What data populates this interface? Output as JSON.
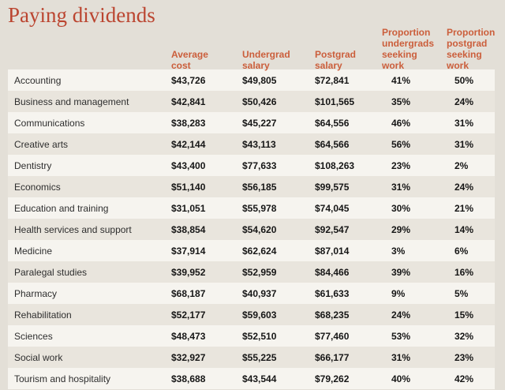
{
  "colors": {
    "background": "#e3dfd7",
    "row_light": "#f6f4ef",
    "row_dark": "#e9e5dd",
    "title_accent": "#bb4530",
    "header_accent": "#cb5e3b",
    "value_text": "#161616"
  },
  "chart_data": {
    "type": "table",
    "title": "Paying dividends",
    "columns": [
      {
        "key": "cost",
        "label": "Average\ncost"
      },
      {
        "key": "undergrad_salary",
        "label": "Undergrad\nsalary"
      },
      {
        "key": "postgrad_salary",
        "label": "Postgrad\nsalary"
      },
      {
        "key": "prop_undergrad_seeking",
        "label": "Proportion\nundergrads\nseeking\nwork"
      },
      {
        "key": "prop_postgrad_seeking",
        "label": "Proportion\npostgrad\nseeking\nwork"
      }
    ],
    "rows": [
      {
        "field": "Accounting",
        "cost": "$43,726",
        "undergrad_salary": "$49,805",
        "postgrad_salary": "$72,841",
        "prop_undergrad_seeking": "41%",
        "prop_postgrad_seeking": "50%"
      },
      {
        "field": "Business and management",
        "cost": "$42,841",
        "undergrad_salary": "$50,426",
        "postgrad_salary": "$101,565",
        "prop_undergrad_seeking": "35%",
        "prop_postgrad_seeking": "24%"
      },
      {
        "field": "Communications",
        "cost": "$38,283",
        "undergrad_salary": "$45,227",
        "postgrad_salary": "$64,556",
        "prop_undergrad_seeking": "46%",
        "prop_postgrad_seeking": "31%"
      },
      {
        "field": "Creative arts",
        "cost": "$42,144",
        "undergrad_salary": "$43,113",
        "postgrad_salary": "$64,566",
        "prop_undergrad_seeking": "56%",
        "prop_postgrad_seeking": "31%"
      },
      {
        "field": "Dentistry",
        "cost": "$43,400",
        "undergrad_salary": "$77,633",
        "postgrad_salary": "$108,263",
        "prop_undergrad_seeking": "23%",
        "prop_postgrad_seeking": "2%"
      },
      {
        "field": "Economics",
        "cost": "$51,140",
        "undergrad_salary": "$56,185",
        "postgrad_salary": "$99,575",
        "prop_undergrad_seeking": "31%",
        "prop_postgrad_seeking": "24%"
      },
      {
        "field": "Education and training",
        "cost": "$31,051",
        "undergrad_salary": "$55,978",
        "postgrad_salary": "$74,045",
        "prop_undergrad_seeking": "30%",
        "prop_postgrad_seeking": "21%"
      },
      {
        "field": "Health services and support",
        "cost": "$38,854",
        "undergrad_salary": "$54,620",
        "postgrad_salary": "$92,547",
        "prop_undergrad_seeking": "29%",
        "prop_postgrad_seeking": "14%"
      },
      {
        "field": "Medicine",
        "cost": "$37,914",
        "undergrad_salary": "$62,624",
        "postgrad_salary": "$87,014",
        "prop_undergrad_seeking": "3%",
        "prop_postgrad_seeking": "6%"
      },
      {
        "field": "Paralegal studies",
        "cost": "$39,952",
        "undergrad_salary": "$52,959",
        "postgrad_salary": "$84,466",
        "prop_undergrad_seeking": "39%",
        "prop_postgrad_seeking": "16%"
      },
      {
        "field": "Pharmacy",
        "cost": "$68,187",
        "undergrad_salary": "$40,937",
        "postgrad_salary": "$61,633",
        "prop_undergrad_seeking": "9%",
        "prop_postgrad_seeking": "5%"
      },
      {
        "field": "Rehabilitation",
        "cost": "$52,177",
        "undergrad_salary": "$59,603",
        "postgrad_salary": "$68,235",
        "prop_undergrad_seeking": "24%",
        "prop_postgrad_seeking": "15%"
      },
      {
        "field": "Sciences",
        "cost": "$48,473",
        "undergrad_salary": "$52,510",
        "postgrad_salary": "$77,460",
        "prop_undergrad_seeking": "53%",
        "prop_postgrad_seeking": "32%"
      },
      {
        "field": "Social work",
        "cost": "$32,927",
        "undergrad_salary": "$55,225",
        "postgrad_salary": "$66,177",
        "prop_undergrad_seeking": "31%",
        "prop_postgrad_seeking": "23%"
      },
      {
        "field": "Tourism and hospitality",
        "cost": "$38,688",
        "undergrad_salary": "$43,544",
        "postgrad_salary": "$79,262",
        "prop_undergrad_seeking": "40%",
        "prop_postgrad_seeking": "42%"
      }
    ]
  }
}
